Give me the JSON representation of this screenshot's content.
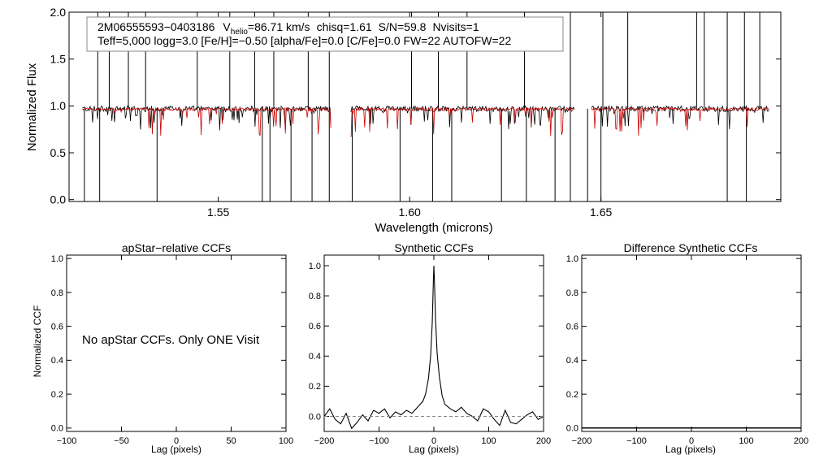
{
  "colors": {
    "observed": "#000000",
    "model": "#cc0000",
    "axis": "#000000",
    "zero_line": "#888888"
  },
  "chart_data": [
    {
      "id": "spectrum",
      "type": "line",
      "title": "",
      "xlabel": "Wavelength (microns)",
      "ylabel": "Normalized Flux",
      "xlim": [
        1.511,
        1.697
      ],
      "ylim": [
        -0.02,
        2.0
      ],
      "xticks": [
        1.55,
        1.6,
        1.65
      ],
      "xtick_labels": [
        "1.55",
        "1.60",
        "1.65"
      ],
      "yticks": [
        0.0,
        0.5,
        1.0,
        1.5,
        2.0
      ],
      "ytick_labels": [
        "0.0",
        "0.5",
        "1.0",
        "1.5",
        "2.0"
      ],
      "info": {
        "star_id": "2M06555593−0403186",
        "v_label": "V",
        "v_subscript": "helio",
        "v_value": "=86.71 km/s",
        "chisq": "chisq=1.61",
        "snr": "S/N=59.8",
        "nvisits": "Nvisits=1",
        "line2": "Teff=5,000 logg=3.0 [Fe/H]=−0.50 [alpha/Fe]=0.0 [C/Fe]=0.0 FW=22 AUTOFW=22"
      },
      "series": [
        {
          "name": "observed",
          "color": "#000000",
          "segments": [
            [
              1.5145,
              1.5795
            ],
            [
              1.5845,
              1.6432
            ],
            [
              1.6475,
              1.694
            ]
          ],
          "continuum": 0.97,
          "spikes_up": [
            1.5185,
            1.5215,
            1.5265,
            1.531,
            1.5445,
            1.553,
            1.5595,
            1.5645,
            1.5735,
            1.579,
            1.6005,
            1.6075,
            1.615,
            1.63,
            1.642,
            1.6505,
            1.657,
            1.675,
            1.677,
            1.683,
            1.6875,
            1.6915
          ],
          "spikes_down": [
            1.515,
            1.519,
            1.534,
            1.5615,
            1.5635,
            1.569,
            1.5745,
            1.579,
            1.585,
            1.5975,
            1.606,
            1.611,
            1.624,
            1.6305,
            1.638,
            1.642,
            1.6465,
            1.65,
            1.683,
            1.688
          ]
        },
        {
          "name": "model",
          "color": "#cc0000",
          "segments": [
            [
              1.5145,
              1.5795
            ],
            [
              1.5845,
              1.6432
            ],
            [
              1.6475,
              1.694
            ]
          ],
          "continuum": 0.965
        }
      ]
    },
    {
      "id": "apstar_ccf",
      "type": "line",
      "title": "apStar−relative CCFs",
      "xlabel": "Lag (pixels)",
      "ylabel": "Normalized CCF",
      "xlim": [
        -100,
        100
      ],
      "ylim": [
        -0.02,
        1.02
      ],
      "xticks": [
        -100,
        -50,
        0,
        50,
        100
      ],
      "xtick_labels": [
        "−100",
        "−50",
        "0",
        "50",
        "100"
      ],
      "yticks": [
        0.0,
        0.2,
        0.4,
        0.6,
        0.8,
        1.0
      ],
      "ytick_labels": [
        "0.0",
        "0.2",
        "0.4",
        "0.6",
        "0.8",
        "1.0"
      ],
      "annotation": "No apStar CCFs.  Only ONE Visit",
      "series": []
    },
    {
      "id": "synthetic_ccf",
      "type": "line",
      "title": "Synthetic CCFs",
      "xlabel": "Lag (pixels)",
      "ylabel": "",
      "xlim": [
        -200,
        200
      ],
      "ylim": [
        -0.1,
        1.07
      ],
      "xticks": [
        -200,
        -100,
        0,
        100,
        200
      ],
      "xtick_labels": [
        "−200",
        "−100",
        "0",
        "100",
        "200"
      ],
      "yticks": [
        0.0,
        0.2,
        0.4,
        0.6,
        0.8,
        1.0
      ],
      "ytick_labels": [
        "0.0",
        "0.2",
        "0.4",
        "0.6",
        "0.8",
        "1.0"
      ],
      "series": [
        {
          "name": "ccf",
          "color": "#000000",
          "x": [
            -200,
            -190,
            -180,
            -170,
            -160,
            -150,
            -140,
            -130,
            -120,
            -110,
            -100,
            -90,
            -80,
            -70,
            -60,
            -50,
            -40,
            -30,
            -20,
            -15,
            -10,
            -6,
            -3,
            -1,
            0,
            1,
            3,
            6,
            10,
            15,
            20,
            30,
            40,
            50,
            60,
            70,
            80,
            90,
            100,
            110,
            120,
            130,
            140,
            150,
            160,
            170,
            180,
            190,
            200
          ],
          "y": [
            0.0,
            0.05,
            -0.02,
            -0.05,
            0.02,
            -0.08,
            -0.04,
            0.01,
            -0.03,
            0.04,
            0.02,
            0.05,
            -0.01,
            0.03,
            0.01,
            0.04,
            0.02,
            0.06,
            0.1,
            0.15,
            0.25,
            0.4,
            0.62,
            0.88,
            1.0,
            0.9,
            0.65,
            0.42,
            0.26,
            0.14,
            0.08,
            0.05,
            0.03,
            0.06,
            0.02,
            0.0,
            -0.03,
            0.05,
            0.03,
            -0.02,
            -0.06,
            0.04,
            -0.04,
            -0.05,
            -0.02,
            0.01,
            0.03,
            -0.02,
            0.0
          ]
        },
        {
          "name": "zero",
          "color": "#888888",
          "dashed": true,
          "x": [
            -200,
            200
          ],
          "y": [
            0,
            0
          ]
        }
      ]
    },
    {
      "id": "difference_ccf",
      "type": "line",
      "title": "Difference Synthetic CCFs",
      "xlabel": "Lag (pixels)",
      "ylabel": "",
      "xlim": [
        -200,
        200
      ],
      "ylim": [
        -0.02,
        1.02
      ],
      "xticks": [
        -200,
        -100,
        0,
        100,
        200
      ],
      "xtick_labels": [
        "−200",
        "−100",
        "0",
        "100",
        "200"
      ],
      "yticks": [
        0.0,
        0.2,
        0.4,
        0.6,
        0.8,
        1.0
      ],
      "ytick_labels": [
        "0.0",
        "0.2",
        "0.4",
        "0.6",
        "0.8",
        "1.0"
      ],
      "series": [
        {
          "name": "difference",
          "color": "#000000",
          "x": [
            -200,
            200
          ],
          "y": [
            0,
            0
          ]
        }
      ]
    }
  ]
}
